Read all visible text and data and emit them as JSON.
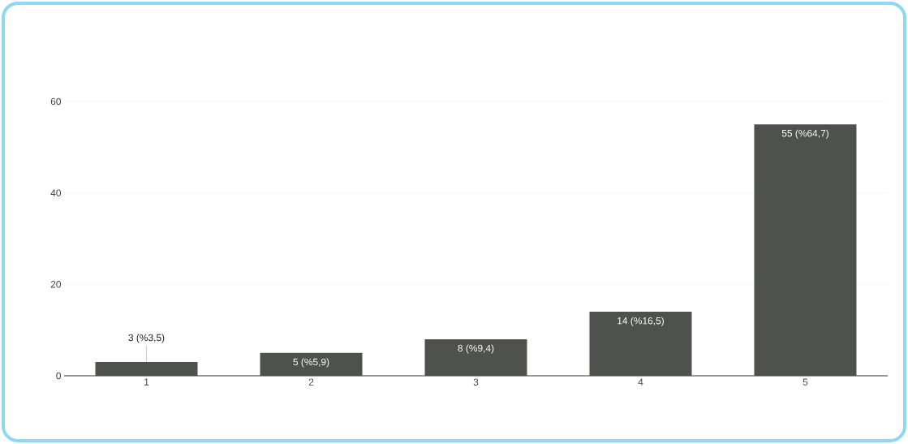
{
  "chart_data": {
    "type": "bar",
    "categories": [
      "1",
      "2",
      "3",
      "4",
      "5"
    ],
    "values": [
      3,
      5,
      8,
      14,
      55
    ],
    "value_labels": [
      "3 (%3,5)",
      "5 (%5,9)",
      "8 (%9,4)",
      "14 (%16,5)",
      "55 (%64,7)"
    ],
    "color": "#4f514e",
    "ylim": [
      0,
      60
    ],
    "yticks": [
      0,
      20,
      40,
      60
    ],
    "grid": "y"
  }
}
